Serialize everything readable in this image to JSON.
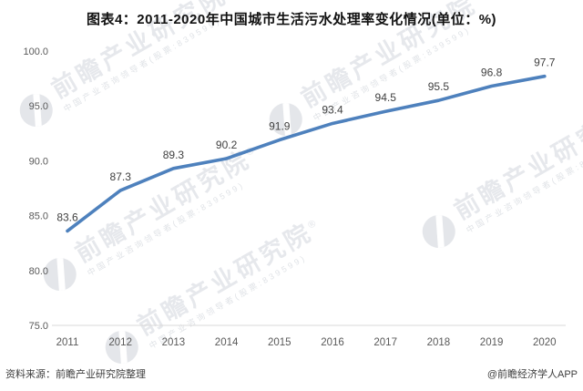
{
  "title": "图表4：2011-2020年中国城市生活污水处理率变化情况(单位：%)",
  "chart_data": {
    "type": "line",
    "title": "图表4：2011-2020年中国城市生活污水处理率变化情况",
    "unit": "%",
    "categories": [
      "2011",
      "2012",
      "2013",
      "2014",
      "2015",
      "2016",
      "2017",
      "2018",
      "2019",
      "2020"
    ],
    "values": [
      83.6,
      87.3,
      89.3,
      90.2,
      91.9,
      93.4,
      94.5,
      95.5,
      96.8,
      97.7
    ],
    "data_labels": [
      "83.6",
      "87.3",
      "89.3",
      "90.2",
      "91.9",
      "93.4",
      "94.5",
      "95.5",
      "96.8",
      "97.7"
    ],
    "y_ticks": [
      "100.0",
      "95.0",
      "90.0",
      "85.0",
      "80.0",
      "75.0"
    ],
    "ylim": [
      75,
      100
    ],
    "xlabel": "",
    "ylabel": "",
    "grid": false,
    "legend": "none",
    "line_color": "#4e81bd"
  },
  "watermark": {
    "brand": "前瞻产业研究院",
    "reg": "®",
    "tagline": "中国产业咨询领导者(股票:839599)"
  },
  "footer": {
    "source": "资料来源：前瞻产业研究院整理",
    "credit": "@前瞻经济学人APP"
  }
}
